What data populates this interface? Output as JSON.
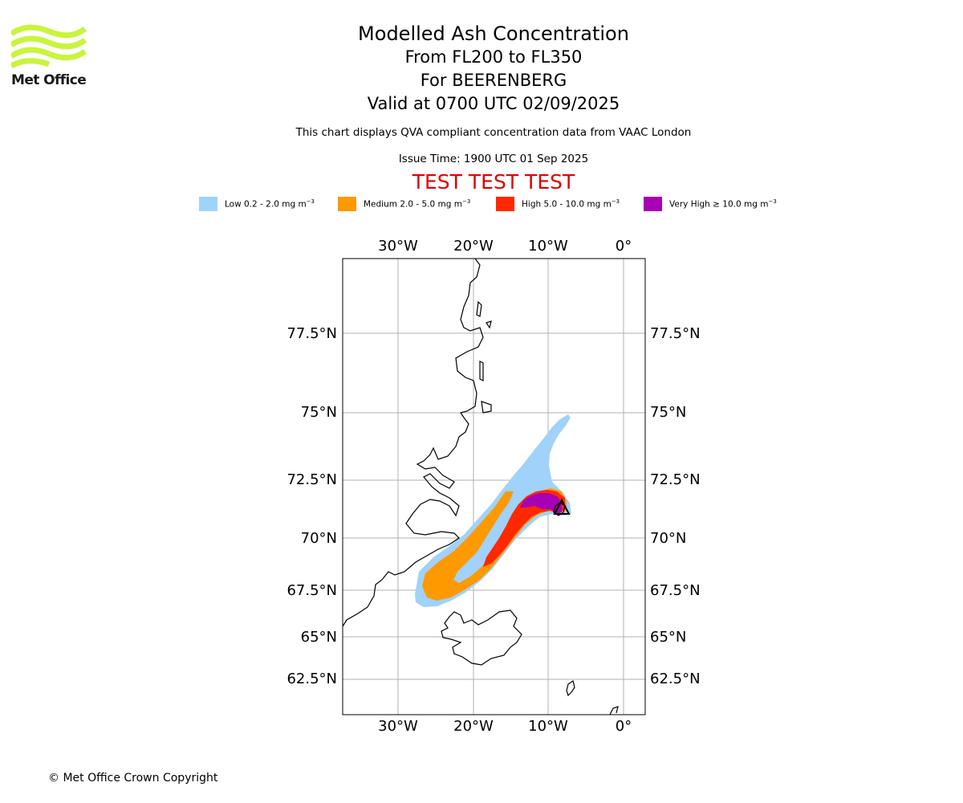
{
  "logo": {
    "text": "Met Office",
    "color": "#c8f53c"
  },
  "header": {
    "title": "Modelled Ash Concentration",
    "levels": "From FL200 to FL350",
    "volcano": "For BEERENBERG",
    "valid": "Valid at 0700 UTC 02/09/2025",
    "qva_note": "This chart displays QVA compliant concentration data from VAAC London",
    "issue_time": "Issue Time: 1900 UTC 01 Sep 2025",
    "banner": "TEST TEST TEST",
    "banner_color": "#e00000"
  },
  "legend": {
    "items": [
      {
        "label": "Low 0.2 - 2.0 mg m",
        "exponent": "−3",
        "color": "#a0d2fa"
      },
      {
        "label": "Medium 2.0 - 5.0 mg m",
        "exponent": "−3",
        "color": "#ff9900"
      },
      {
        "label": "High 5.0 - 10.0 mg m",
        "exponent": "−3",
        "color": "#ff2800"
      },
      {
        "label": "Very High ≥ 10.0 mg m",
        "exponent": "−3",
        "color": "#a800b4"
      }
    ]
  },
  "map": {
    "lon_ticks": [
      "30°W",
      "20°W",
      "10°W",
      "0°"
    ],
    "lat_ticks": [
      "77.5°N",
      "75°N",
      "72.5°N",
      "70°N",
      "67.5°N",
      "65°N",
      "62.5°N"
    ],
    "volcano_name": "BEERENBERG",
    "volcano_symbol": "volcano-triangle",
    "grid": true,
    "projection": "polar-stereographic"
  },
  "footer": {
    "copyright": "© Met Office Crown Copyright"
  }
}
